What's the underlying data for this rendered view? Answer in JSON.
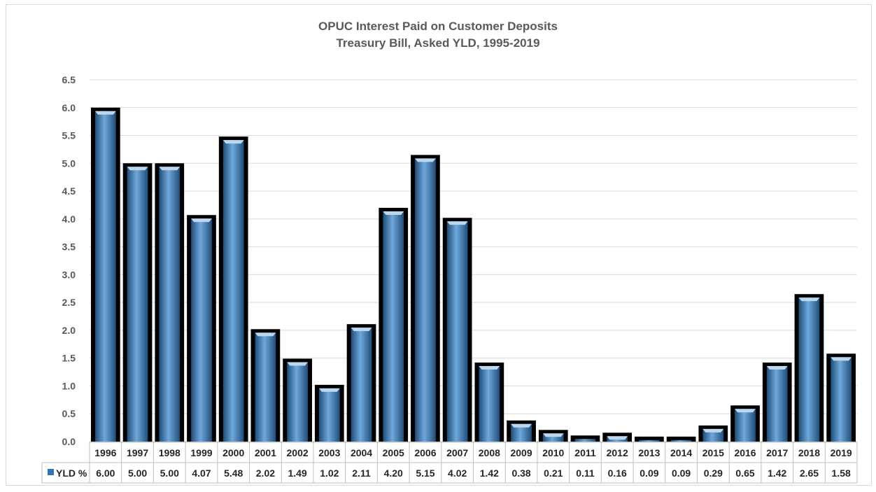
{
  "chart_data": {
    "type": "bar",
    "title": "OPUC Interest Paid on Customer Deposits",
    "subtitle": "Treasury Bill, Asked YLD, 1995-2019",
    "xlabel": "",
    "ylabel": "",
    "ylim": [
      0,
      6.5
    ],
    "yticks": [
      "0.0",
      "0.5",
      "1.0",
      "1.5",
      "2.0",
      "2.5",
      "3.0",
      "3.5",
      "4.0",
      "4.5",
      "5.0",
      "5.5",
      "6.0",
      "6.5"
    ],
    "grid": true,
    "legend": "data-table",
    "categories": [
      "1996",
      "1997",
      "1998",
      "1999",
      "2000",
      "2001",
      "2002",
      "2003",
      "2004",
      "2005",
      "2006",
      "2007",
      "2008",
      "2009",
      "2010",
      "2011",
      "2012",
      "2013",
      "2014",
      "2015",
      "2016",
      "2017",
      "2018",
      "2019"
    ],
    "series": [
      {
        "name": "YLD %",
        "values": [
          6.0,
          5.0,
          5.0,
          4.07,
          5.48,
          2.02,
          1.49,
          1.02,
          2.11,
          4.2,
          5.15,
          4.02,
          1.42,
          0.38,
          0.21,
          0.11,
          0.16,
          0.09,
          0.09,
          0.29,
          0.65,
          1.42,
          2.65,
          1.58
        ],
        "labels": [
          "6.00",
          "5.00",
          "5.00",
          "4.07",
          "5.48",
          "2.02",
          "1.49",
          "1.02",
          "2.11",
          "4.20",
          "5.15",
          "4.02",
          "1.42",
          "0.38",
          "0.21",
          "0.11",
          "0.16",
          "0.09",
          "0.09",
          "0.29",
          "0.65",
          "1.42",
          "2.65",
          "1.58"
        ]
      }
    ],
    "colors": {
      "bar": "#2e75b6",
      "bar_light": "#6fa8dc",
      "bar_dark": "#1f4e79",
      "bar_border": "#000000",
      "grid": "#d9d9d9",
      "text": "#595959"
    }
  }
}
